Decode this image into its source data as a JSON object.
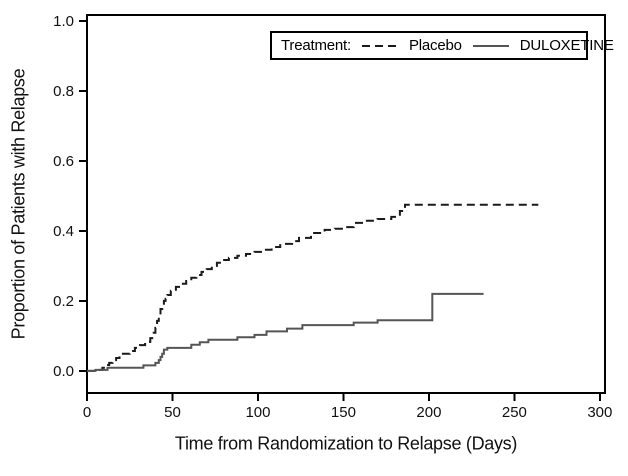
{
  "figure": {
    "background": "#ffffff",
    "frame_color": "#000000"
  },
  "chart_data": {
    "type": "line",
    "subtype": "kaplan-meier-step",
    "title": "",
    "xlabel": "Time from Randomization to Relapse (Days)",
    "ylabel": "Proportion of Patients with Relapse",
    "xlim": [
      0,
      303
    ],
    "ylim": [
      -0.063,
      1.017
    ],
    "grid": false,
    "x_ticks": [
      {
        "value": 0,
        "label": "0"
      },
      {
        "value": 50,
        "label": "50"
      },
      {
        "value": 100,
        "label": "100"
      },
      {
        "value": 150,
        "label": "150"
      },
      {
        "value": 200,
        "label": "200"
      },
      {
        "value": 250,
        "label": "250"
      },
      {
        "value": 300,
        "label": "300"
      }
    ],
    "y_ticks": [
      {
        "value": 0.0,
        "label": "0.0"
      },
      {
        "value": 0.2,
        "label": "0.2"
      },
      {
        "value": 0.4,
        "label": "0.4"
      },
      {
        "value": 0.6,
        "label": "0.6"
      },
      {
        "value": 0.8,
        "label": "0.8"
      },
      {
        "value": 1.0,
        "label": "1.0"
      }
    ],
    "legend": {
      "title": "Treatment:",
      "position": "top-right",
      "entries": [
        {
          "label": "Placebo",
          "style": "dashed"
        },
        {
          "label": "DULOXETINE",
          "style": "solid"
        }
      ]
    },
    "series": [
      {
        "name": "Placebo",
        "style": "dashed",
        "color": "#1a1a1a",
        "end_day": 264,
        "points": [
          [
            0,
            0
          ],
          [
            5,
            0.003
          ],
          [
            9,
            0.009
          ],
          [
            11,
            0.017
          ],
          [
            13,
            0.023
          ],
          [
            15,
            0.031
          ],
          [
            17,
            0.037
          ],
          [
            19,
            0.043
          ],
          [
            21,
            0.049
          ],
          [
            25,
            0.057
          ],
          [
            28,
            0.066
          ],
          [
            31,
            0.074
          ],
          [
            34,
            0.083
          ],
          [
            37,
            0.094
          ],
          [
            39,
            0.109
          ],
          [
            40,
            0.123
          ],
          [
            41,
            0.143
          ],
          [
            42,
            0.161
          ],
          [
            43,
            0.177
          ],
          [
            44,
            0.189
          ],
          [
            45,
            0.2
          ],
          [
            46,
            0.206
          ],
          [
            47,
            0.217
          ],
          [
            49,
            0.229
          ],
          [
            52,
            0.24
          ],
          [
            55,
            0.249
          ],
          [
            58,
            0.257
          ],
          [
            61,
            0.266
          ],
          [
            64,
            0.274
          ],
          [
            67,
            0.283
          ],
          [
            70,
            0.291
          ],
          [
            73,
            0.3
          ],
          [
            76,
            0.309
          ],
          [
            79,
            0.317
          ],
          [
            83,
            0.323
          ],
          [
            88,
            0.329
          ],
          [
            93,
            0.334
          ],
          [
            98,
            0.34
          ],
          [
            104,
            0.346
          ],
          [
            108,
            0.354
          ],
          [
            113,
            0.363
          ],
          [
            120,
            0.371
          ],
          [
            124,
            0.38
          ],
          [
            131,
            0.394
          ],
          [
            139,
            0.403
          ],
          [
            145,
            0.406
          ],
          [
            150,
            0.411
          ],
          [
            156,
            0.423
          ],
          [
            162,
            0.429
          ],
          [
            170,
            0.434
          ],
          [
            178,
            0.44
          ],
          [
            183,
            0.457
          ],
          [
            186,
            0.475
          ]
        ]
      },
      {
        "name": "DULOXETINE",
        "style": "solid",
        "color": "#555555",
        "end_day": 232,
        "points": [
          [
            0,
            0
          ],
          [
            5,
            0.003
          ],
          [
            12,
            0.009
          ],
          [
            33,
            0.016
          ],
          [
            40,
            0.023
          ],
          [
            42,
            0.031
          ],
          [
            43,
            0.04
          ],
          [
            44,
            0.049
          ],
          [
            45,
            0.061
          ],
          [
            47,
            0.066
          ],
          [
            61,
            0.075
          ],
          [
            66,
            0.082
          ],
          [
            71,
            0.089
          ],
          [
            88,
            0.096
          ],
          [
            98,
            0.103
          ],
          [
            105,
            0.113
          ],
          [
            117,
            0.121
          ],
          [
            126,
            0.131
          ],
          [
            156,
            0.138
          ],
          [
            170,
            0.145
          ],
          [
            202,
            0.22
          ]
        ]
      }
    ]
  }
}
